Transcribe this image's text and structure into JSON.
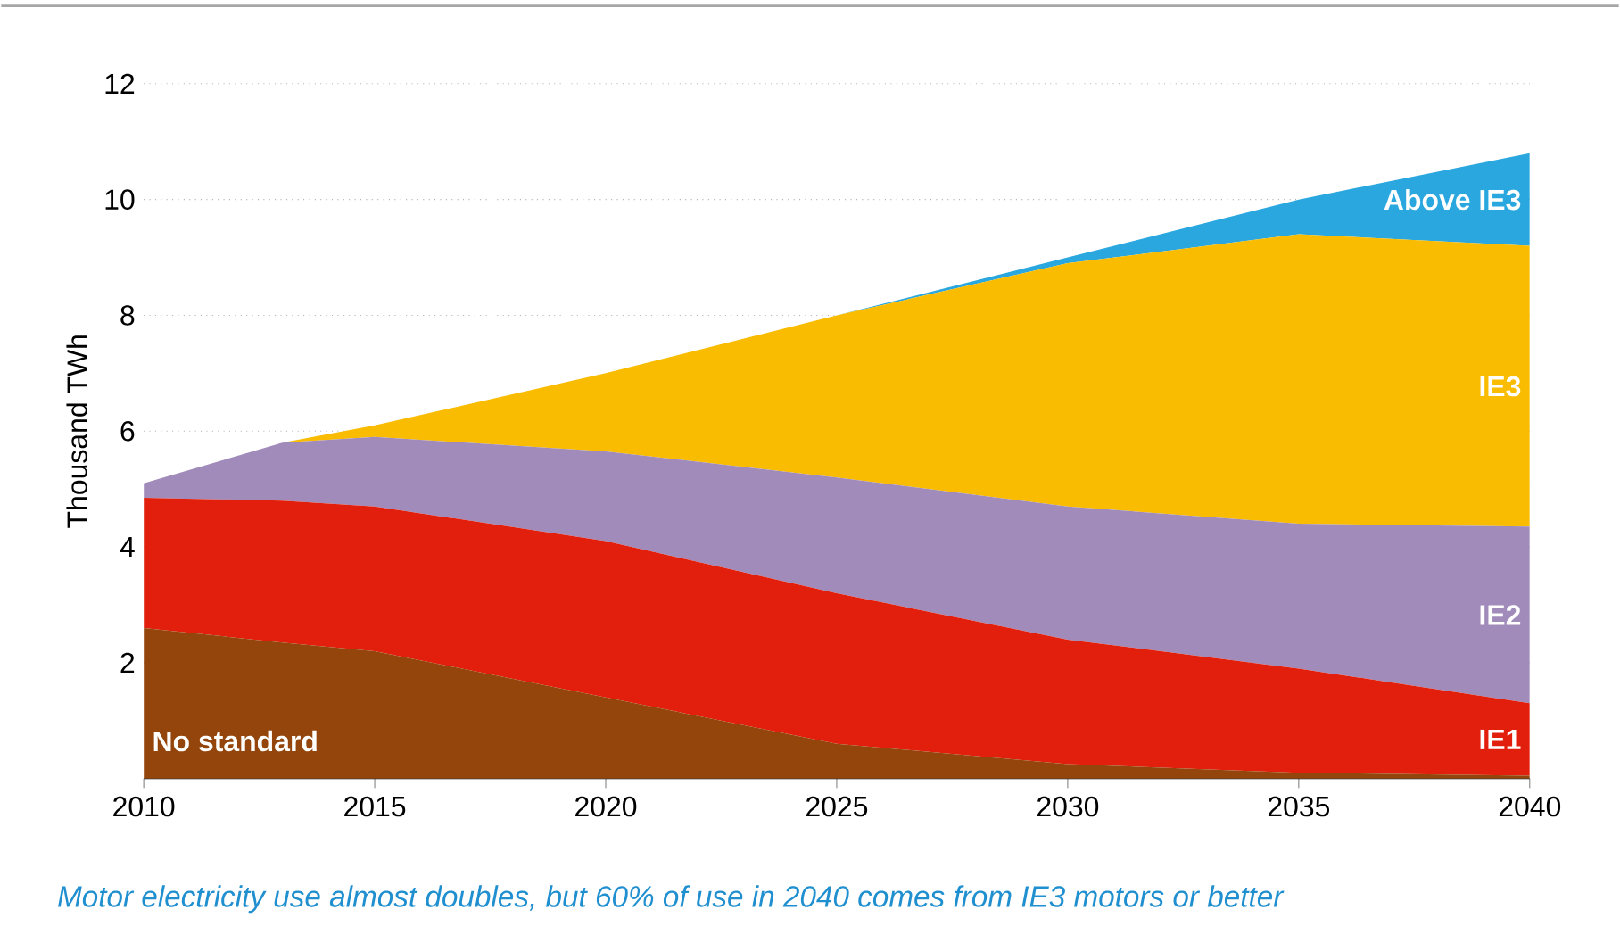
{
  "chart_data": {
    "type": "area",
    "stacked": true,
    "ylabel": "Thousand TWh",
    "x": [
      2010,
      2013,
      2015,
      2020,
      2025,
      2030,
      2035,
      2040
    ],
    "series": [
      {
        "name": "No standard",
        "color": "#93450b",
        "values": [
          2.6,
          2.35,
          2.2,
          1.4,
          0.6,
          0.25,
          0.1,
          0.05
        ]
      },
      {
        "name": "IE1",
        "color": "#e21f0c",
        "values": [
          2.25,
          2.45,
          2.5,
          2.7,
          2.6,
          2.15,
          1.8,
          1.25
        ]
      },
      {
        "name": "IE2",
        "color": "#a08bba",
        "values": [
          0.25,
          1.0,
          1.2,
          1.55,
          2.0,
          2.3,
          2.5,
          3.05
        ]
      },
      {
        "name": "IE3",
        "color": "#f9bc00",
        "values": [
          0,
          0,
          0.2,
          1.35,
          2.8,
          4.2,
          5.0,
          4.85
        ]
      },
      {
        "name": "Above IE3",
        "color": "#29a7de",
        "values": [
          0,
          0,
          0,
          0,
          0,
          0.1,
          0.6,
          1.6
        ]
      }
    ],
    "xlim": [
      2010,
      2040
    ],
    "xticks": [
      2010,
      2015,
      2020,
      2025,
      2030,
      2035,
      2040
    ],
    "ylim": [
      0,
      12
    ],
    "yticks": [
      2,
      4,
      6,
      8,
      10,
      12
    ],
    "grid": "y",
    "annotations": [
      "Motor electricity use almost doubles, but 60% of use in 2040 comes from IE3 motors or better"
    ]
  }
}
